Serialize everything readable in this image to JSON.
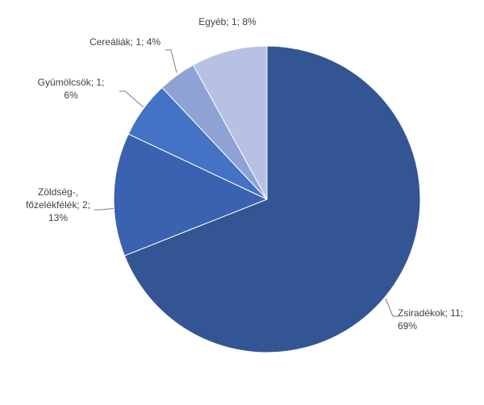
{
  "chart_data": {
    "type": "pie",
    "values": [
      69,
      13,
      6,
      4,
      8
    ],
    "value_labels": [
      "Zsiradékok; 11;\n69%",
      "Zöldség-,\nfőzelékfélék; 2;\n13%",
      "Gyümölcsök; 1;\n6%",
      "Cereáliák; 1; 4%",
      "Egyéb; 1; 8%"
    ],
    "colors": [
      "#335593",
      "#3a62b0",
      "#4472c4",
      "#8fa2d4",
      "#b6c1e4"
    ]
  }
}
